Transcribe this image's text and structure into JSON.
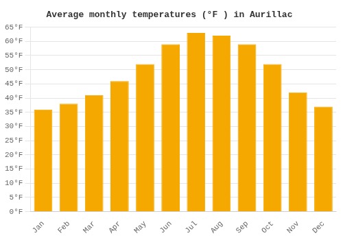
{
  "chart_data": {
    "type": "bar",
    "title": "Average monthly temperatures (°F ) in Aurillac",
    "categories": [
      "Jan",
      "Feb",
      "Mar",
      "Apr",
      "May",
      "Jun",
      "Jul",
      "Aug",
      "Sep",
      "Oct",
      "Nov",
      "Dec"
    ],
    "values": [
      36,
      38,
      41,
      46,
      52,
      59,
      63,
      62,
      59,
      52,
      42,
      37
    ],
    "color": "#F5A800",
    "ylim": [
      0,
      65
    ],
    "yticks": [
      {
        "value": 0,
        "label": "0°F"
      },
      {
        "value": 5,
        "label": "5°F"
      },
      {
        "value": 10,
        "label": "10°F"
      },
      {
        "value": 15,
        "label": "15°F"
      },
      {
        "value": 20,
        "label": "20°F"
      },
      {
        "value": 25,
        "label": "25°F"
      },
      {
        "value": 30,
        "label": "30°F"
      },
      {
        "value": 35,
        "label": "35°F"
      },
      {
        "value": 40,
        "label": "40°F"
      },
      {
        "value": 45,
        "label": "45°F"
      },
      {
        "value": 50,
        "label": "50°F"
      },
      {
        "value": 55,
        "label": "55°F"
      },
      {
        "value": 60,
        "label": "60°F"
      },
      {
        "value": 65,
        "label": "65°F"
      }
    ],
    "grid": true
  }
}
